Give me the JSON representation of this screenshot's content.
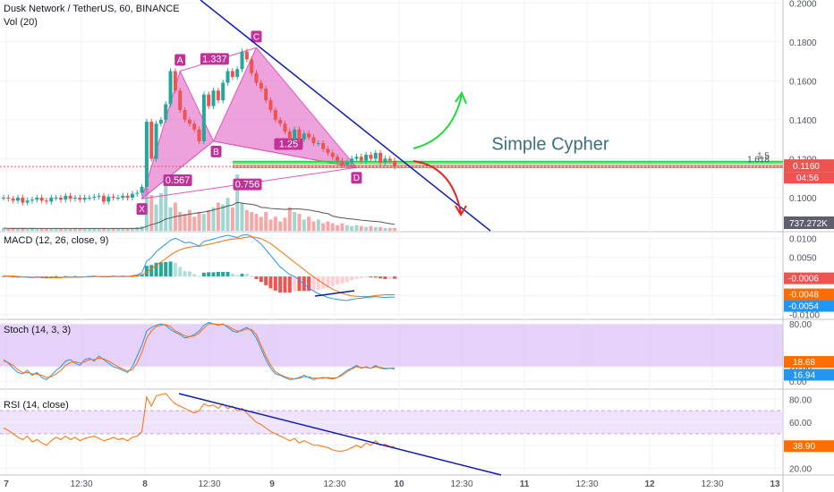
{
  "header": {
    "symbol_line": "Dusk Network / TetherUS, 60, BINANCE",
    "vol_label": "Vol (20)"
  },
  "colors": {
    "up": "#26a69a",
    "down": "#ef5350",
    "pattern_fill": "#e056c0",
    "pattern_label_bg": "#c2309a",
    "trendline": "#0d1bb5",
    "green_arrow": "#21d93b",
    "red_arrow": "#e8241c",
    "horizontal_green": "#25d43a",
    "horizontal_red": "#e05050",
    "macd_line": "#2196f3",
    "signal_line": "#ff6d00",
    "stoch_k": "#2196f3",
    "stoch_d": "#ff6d00",
    "stoch_band": "#d9b8f5",
    "rsi_line": "#ff6d00",
    "rsi_band": "#ead7fb",
    "annotation_text": "#3a6f7f"
  },
  "chart_data": [
    {
      "type": "candlestick",
      "title": "Dusk Network / TetherUS, 60, BINANCE",
      "x_ticks": [
        "7",
        "12:30",
        "8",
        "12:30",
        "9",
        "12:30",
        "10",
        "12:30",
        "11",
        "12:30",
        "12",
        "12:30",
        "13"
      ],
      "y_ticks": [
        "0.2000",
        "0.1800",
        "0.1600",
        "0.1400",
        "0.1200",
        "0.1000"
      ],
      "ylim": [
        0.083,
        0.2015
      ],
      "close_series": [
        0.1,
        0.0995,
        0.0985,
        0.1,
        0.0975,
        0.0985,
        0.099,
        0.1,
        0.0985,
        0.098,
        0.1,
        0.1,
        0.099,
        0.101,
        0.0995,
        0.1,
        0.099,
        0.1,
        0.1,
        0.1005,
        0.101,
        0.098,
        0.1005,
        0.1,
        0.1,
        0.101,
        0.1,
        0.102,
        0.1025,
        0.1055,
        0.139,
        0.12,
        0.138,
        0.14,
        0.148,
        0.165,
        0.155,
        0.145,
        0.14,
        0.138,
        0.135,
        0.129,
        0.153,
        0.147,
        0.155,
        0.15,
        0.159,
        0.165,
        0.162,
        0.166,
        0.175,
        0.171,
        0.164,
        0.159,
        0.156,
        0.15,
        0.145,
        0.14,
        0.138,
        0.134,
        0.13,
        0.135,
        0.13,
        0.133,
        0.131,
        0.128,
        0.128,
        0.125,
        0.123,
        0.121,
        0.119,
        0.117,
        0.118,
        0.12,
        0.121,
        0.119,
        0.122,
        0.12,
        0.123,
        0.118,
        0.12,
        0.119,
        0.116
      ],
      "last_price": "0.1160",
      "countdown": "04:56",
      "fib_levels": [
        "1.618",
        "1.5"
      ],
      "pattern": {
        "name": "Simple Cypher",
        "points": [
          {
            "label": "X",
            "price": 0.0995
          },
          {
            "label": "A",
            "price": 0.165
          },
          {
            "label": "B",
            "price": 0.129
          },
          {
            "label": "C",
            "price": 0.177
          },
          {
            "label": "D",
            "price": 0.1155
          }
        ],
        "ratios": [
          "1.337",
          "1.25",
          "0.567",
          "0.756"
        ]
      },
      "trendline": {
        "from": {
          "x": "8 (12:00)",
          "price": 0.203
        },
        "to": {
          "x": "11 (06:00)",
          "price": 0.083
        }
      },
      "volume": {
        "label": "737.272K",
        "values": [
          3,
          2,
          3,
          2,
          3,
          2,
          3,
          2,
          3,
          2,
          2,
          3,
          2,
          3,
          2,
          3,
          2,
          3,
          2,
          3,
          2,
          3,
          2,
          3,
          2,
          3,
          2,
          3,
          4,
          5,
          45,
          38,
          28,
          40,
          60,
          25,
          30,
          20,
          18,
          22,
          15,
          20,
          18,
          22,
          25,
          30,
          28,
          35,
          25,
          60,
          30,
          22,
          20,
          18,
          15,
          20,
          12,
          15,
          10,
          14,
          25,
          20,
          18,
          12,
          15,
          10,
          12,
          8,
          10,
          8,
          6,
          8,
          6,
          5,
          6,
          5,
          4,
          5,
          4,
          4,
          3,
          3,
          3
        ]
      }
    },
    {
      "type": "line",
      "title": "MACD (12, 26, close, 9)",
      "y_ticks": [
        "0.0100",
        "0.0050",
        "0.0000",
        "-0.0050",
        "-0.0100"
      ],
      "ylim": [
        -0.011,
        0.0115
      ],
      "series": [
        {
          "name": "MACD",
          "values": [
            0.0002,
            0.0001,
            0.0,
            -0.0002,
            -0.0001,
            -0.0002,
            -0.0003,
            -0.0002,
            -0.0003,
            -0.0004,
            -0.0003,
            -0.0002,
            -0.0003,
            -0.0001,
            -0.0002,
            -0.0001,
            -0.0002,
            -0.0001,
            0.0,
            0.0001,
            0.0,
            -0.0001,
            0.0,
            0.0001,
            0.0,
            0.0001,
            0.0,
            0.0002,
            0.0004,
            0.001,
            0.004,
            0.005,
            0.0065,
            0.0075,
            0.0085,
            0.0095,
            0.01,
            0.0095,
            0.0088,
            0.009,
            0.0085,
            0.008,
            0.0092,
            0.0095,
            0.0098,
            0.0102,
            0.0105,
            0.0108,
            0.0105,
            0.0102,
            0.0108,
            0.011,
            0.0105,
            0.0095,
            0.0085,
            0.007,
            0.0055,
            0.004,
            0.0025,
            0.0015,
            0.0005,
            0.0,
            -0.001,
            -0.002,
            -0.003,
            -0.0038,
            -0.0045,
            -0.005,
            -0.0055,
            -0.0058,
            -0.006,
            -0.0062,
            -0.0063,
            -0.006,
            -0.0058,
            -0.0057,
            -0.0055,
            -0.0054,
            -0.0053,
            -0.0054,
            -0.0055,
            -0.0054,
            -0.0054
          ]
        },
        {
          "name": "Signal",
          "values": [
            0.0001,
            0.0001,
            0.0001,
            0.0,
            -0.0001,
            -0.0001,
            -0.0002,
            -0.0002,
            -0.0002,
            -0.0003,
            -0.0003,
            -0.0003,
            -0.0003,
            -0.0002,
            -0.0002,
            -0.0002,
            -0.0002,
            -0.0001,
            -0.0001,
            0.0,
            0.0,
            0.0,
            0.0,
            0.0,
            0.0,
            0.0,
            0.0,
            0.0001,
            0.0002,
            0.0004,
            0.0012,
            0.002,
            0.0029,
            0.0038,
            0.0047,
            0.0056,
            0.0064,
            0.007,
            0.0074,
            0.0077,
            0.0079,
            0.0079,
            0.0082,
            0.0084,
            0.0087,
            0.009,
            0.0093,
            0.0096,
            0.0098,
            0.0099,
            0.0101,
            0.0103,
            0.0104,
            0.0102,
            0.0099,
            0.0093,
            0.0086,
            0.0077,
            0.0067,
            0.0057,
            0.0047,
            0.0037,
            0.0028,
            0.0018,
            0.0008,
            -0.0001,
            -0.001,
            -0.0018,
            -0.0026,
            -0.0033,
            -0.0039,
            -0.0044,
            -0.0048,
            -0.0051,
            -0.0052,
            -0.0053,
            -0.0053,
            -0.0052,
            -0.005,
            -0.0049,
            -0.0048,
            -0.0048,
            -0.0048
          ]
        }
      ],
      "value_tags": [
        "-0.0006",
        "-0.0048",
        "-0.0054"
      ]
    },
    {
      "type": "line",
      "title": "Stoch (14, 3, 3)",
      "y_ticks": [
        "80.00",
        "20.00",
        "0.00"
      ],
      "band": [
        20,
        80
      ],
      "ylim": [
        -10,
        85
      ],
      "series": [
        {
          "name": "%K",
          "values": [
            30,
            25,
            18,
            12,
            10,
            15,
            8,
            12,
            5,
            2,
            8,
            15,
            20,
            28,
            30,
            25,
            22,
            30,
            32,
            28,
            35,
            30,
            25,
            20,
            18,
            15,
            12,
            20,
            35,
            50,
            70,
            75,
            78,
            80,
            78,
            72,
            68,
            65,
            60,
            62,
            65,
            70,
            78,
            82,
            80,
            78,
            80,
            75,
            70,
            68,
            72,
            75,
            70,
            60,
            45,
            30,
            18,
            10,
            8,
            5,
            2,
            3,
            5,
            8,
            5,
            2,
            4,
            5,
            4,
            3,
            5,
            10,
            15,
            18,
            22,
            18,
            20,
            18,
            22,
            18,
            17,
            18,
            16.94
          ]
        },
        {
          "name": "%D",
          "values": [
            28,
            26,
            22,
            16,
            12,
            12,
            10,
            10,
            8,
            5,
            6,
            10,
            15,
            22,
            26,
            27,
            25,
            27,
            30,
            30,
            32,
            31,
            28,
            24,
            20,
            17,
            14,
            16,
            25,
            40,
            60,
            70,
            76,
            78,
            79,
            76,
            70,
            67,
            63,
            62,
            63,
            67,
            74,
            80,
            80,
            79,
            79,
            77,
            73,
            70,
            70,
            73,
            72,
            65,
            50,
            35,
            22,
            13,
            9,
            6,
            4,
            3,
            4,
            6,
            6,
            4,
            4,
            4,
            5,
            4,
            5,
            8,
            13,
            17,
            20,
            19,
            19,
            18,
            20,
            19,
            18,
            18,
            18.68
          ]
        }
      ],
      "value_tags": [
        "18.68",
        "16.94"
      ]
    },
    {
      "type": "line",
      "title": "RSI (14, close)",
      "y_ticks": [
        "80.00",
        "60.00",
        "40.00",
        "20.00"
      ],
      "band": [
        50,
        70
      ],
      "ylim": [
        15,
        88
      ],
      "series": [
        {
          "name": "RSI",
          "values": [
            55,
            53,
            50,
            47,
            45,
            48,
            43,
            45,
            42,
            40,
            44,
            47,
            45,
            48,
            45,
            47,
            44,
            46,
            47,
            48,
            46,
            44,
            45,
            47,
            45,
            46,
            44,
            47,
            48,
            52,
            82,
            74,
            83,
            84,
            85,
            80,
            76,
            74,
            72,
            70,
            68,
            70,
            76,
            74,
            75,
            72,
            76,
            72,
            74,
            70,
            72,
            68,
            64,
            60,
            58,
            55,
            52,
            50,
            48,
            46,
            44,
            46,
            42,
            44,
            42,
            40,
            40,
            39,
            38,
            36,
            35,
            35,
            36,
            38,
            40,
            38,
            42,
            40,
            44,
            40,
            41,
            39,
            38.9
          ]
        }
      ],
      "value_tags": [
        "38.90"
      ]
    }
  ]
}
